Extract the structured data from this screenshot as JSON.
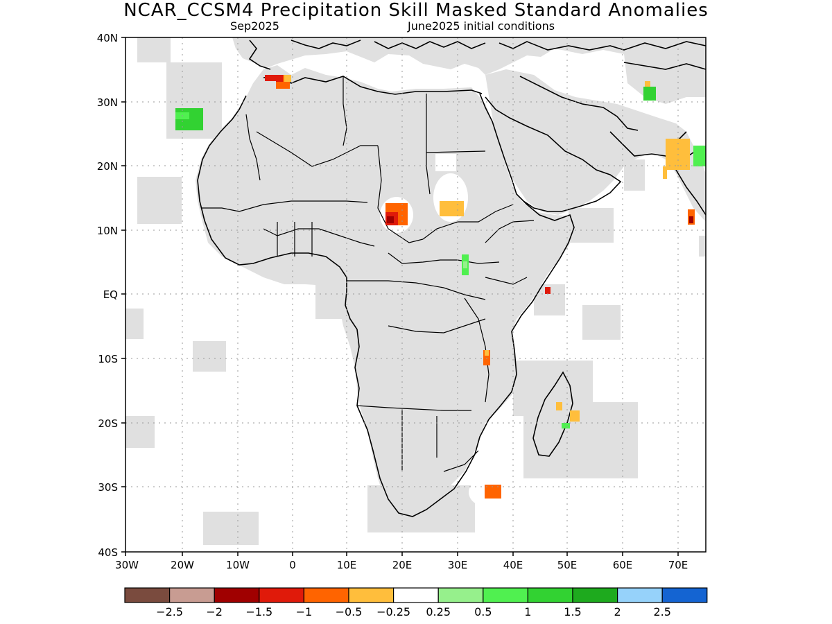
{
  "map": {
    "title": "NCAR_CCSM4 Precipitation Skill Masked Standard Anomalies",
    "subtitle_left": "Sep2025",
    "subtitle_right": "June2025 initial conditions",
    "lat_labels": [
      "40N",
      "30N",
      "20N",
      "10N",
      "EQ",
      "10S",
      "20S",
      "30S",
      "40S"
    ],
    "lon_labels": [
      "30W",
      "20W",
      "10W",
      "0",
      "10E",
      "20E",
      "30E",
      "40E",
      "50E",
      "60E",
      "70E"
    ],
    "land_color": "#e0e0e0",
    "ocean_color": "#ffffff",
    "colorbar": {
      "colors": [
        "#7a4b3e",
        "#c89c92",
        "#a00000",
        "#e01a0a",
        "#ff6400",
        "#ffbe3c",
        "#ffffff",
        "#96f08c",
        "#50f050",
        "#32d232",
        "#1eaa1e",
        "#96d2fa",
        "#1464d2"
      ],
      "labels": [
        "−2.5",
        "−2",
        "−1.5",
        "−1",
        "−0.5",
        "−0.25",
        "0.25",
        "0.5",
        "1",
        "1.5",
        "2",
        "2.5"
      ]
    },
    "anomaly_patches": [
      {
        "region": "Morocco coast",
        "value": "−1.5 to −0.5"
      },
      {
        "region": "Canary Islands",
        "value": "0.5 to 1"
      },
      {
        "region": "Chad",
        "value": "−1.5 to −0.5"
      },
      {
        "region": "Sudan",
        "value": "−0.5"
      },
      {
        "region": "South Sudan / Uganda",
        "value": "0.5 to 1"
      },
      {
        "region": "Somalia coast",
        "value": "−1"
      },
      {
        "region": "Malawi",
        "value": "−1 to −0.5"
      },
      {
        "region": "Madagascar east",
        "value": "−0.5"
      },
      {
        "region": "Southwest Indian Ocean",
        "value": "−1"
      },
      {
        "region": "Pakistan / Afghanistan",
        "value": "−0.5 to 1"
      },
      {
        "region": "NW India",
        "value": "−0.5"
      },
      {
        "region": "SW India",
        "value": "−1.5"
      }
    ]
  }
}
